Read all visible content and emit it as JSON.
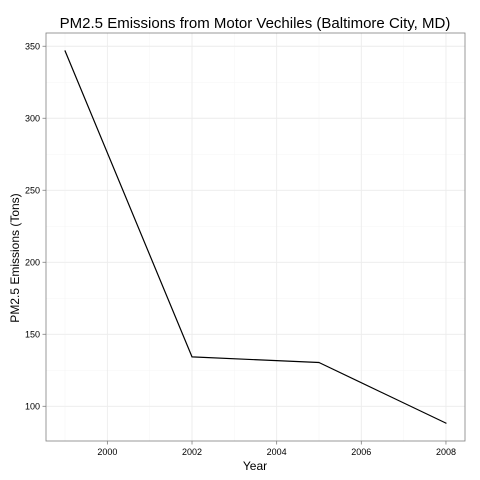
{
  "colors": {
    "line": "#000000",
    "panel_border": "#7f7f7f",
    "grid_major": "#ececec",
    "grid_minor": "#f6f6f6",
    "tick": "#7f7f7f",
    "background": "#ffffff"
  },
  "chart_data": {
    "type": "line",
    "title": "PM2.5 Emissions from Motor Vechiles (Baltimore City, MD)",
    "xlabel": "Year",
    "ylabel": "PM2.5 Emissions (Tons)",
    "x": [
      1999,
      2002,
      2005,
      2008
    ],
    "series": [
      {
        "values": [
          346.8,
          134.3,
          130.4,
          88.3
        ]
      }
    ],
    "xlim": [
      1998.55,
      2008.45
    ],
    "ylim": [
      75.9,
      359.2
    ],
    "x_ticks": [
      2000,
      2002,
      2004,
      2006,
      2008
    ],
    "x_tick_labels": [
      "2000",
      "2002",
      "2004",
      "2006",
      "2008"
    ],
    "y_ticks": [
      100,
      150,
      200,
      250,
      300,
      350
    ],
    "y_tick_labels": [
      "100",
      "150",
      "200",
      "250",
      "300",
      "350"
    ],
    "grid": true,
    "legend": "none"
  }
}
